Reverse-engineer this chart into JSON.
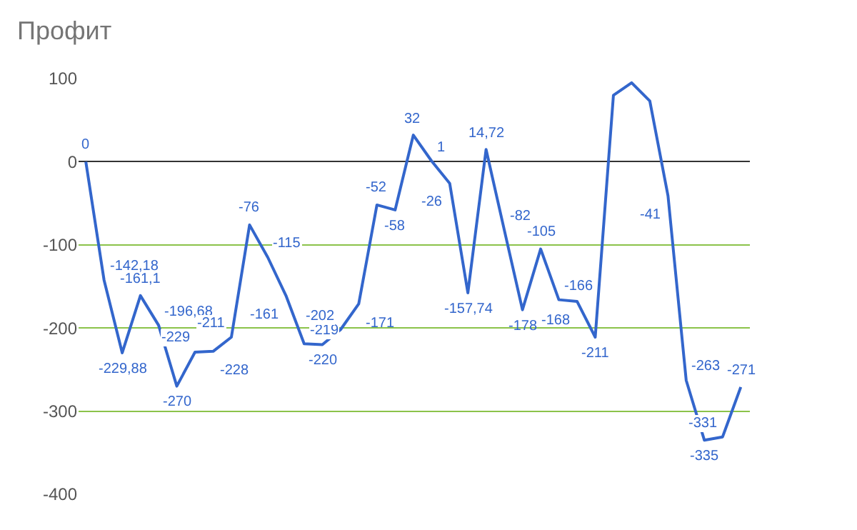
{
  "chart_data": {
    "type": "line",
    "title": "Профит",
    "categories": [
      null,
      null,
      null,
      null,
      null,
      null,
      null,
      null,
      null,
      null,
      null,
      null,
      null,
      null,
      null,
      null,
      null,
      null,
      null,
      null,
      null,
      null,
      null,
      null,
      null,
      null,
      null,
      null,
      null,
      null,
      null,
      null,
      null,
      null,
      null,
      null,
      null
    ],
    "series": [
      {
        "color": "#3366cc",
        "values": [
          0,
          -142.18,
          -229.88,
          -161.1,
          -196.68,
          -270,
          -229,
          -228,
          -211,
          -76,
          -115,
          -161,
          -219,
          -220,
          -202,
          -171,
          -52,
          -58,
          32,
          1,
          -26,
          -157.74,
          14.72,
          -82,
          -178,
          -105,
          -166,
          -168,
          -211,
          80,
          95,
          73,
          -41,
          -263,
          -335,
          -331,
          -271
        ],
        "value_labels": [
          "0",
          "-142,18",
          "-229,88",
          "-161,1",
          "-196,68",
          "-270",
          "-229",
          "-228",
          "-211",
          "-76",
          "-115",
          "-161",
          "-219",
          "-220",
          "-202",
          "-171",
          "-52",
          "-58",
          "32",
          "1",
          "-26",
          "-157,74",
          "14,72",
          "-82",
          "-178",
          "-105",
          "-166",
          "-168",
          "-211",
          null,
          null,
          null,
          "-41",
          "-263",
          "-335",
          "-331",
          "-271"
        ]
      }
    ],
    "ylim": [
      -400,
      100
    ],
    "yticks": [
      -400,
      -300,
      -200,
      -100,
      0,
      100
    ],
    "grid": "y",
    "marker": "none",
    "line_style": "solid"
  }
}
